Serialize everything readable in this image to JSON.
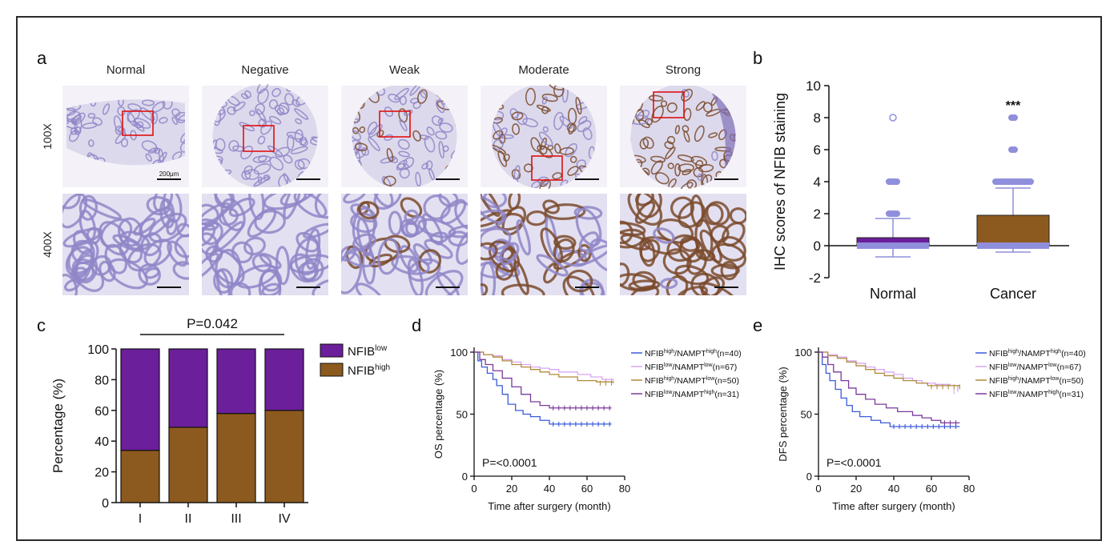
{
  "panels": {
    "a": {
      "letter": "a",
      "columns": [
        "Normal",
        "Negative",
        "Weak",
        "Moderate",
        "Strong"
      ],
      "rows": [
        "100X",
        "400X"
      ],
      "scale_bar_label": "200μm"
    },
    "b": {
      "letter": "b",
      "significance": "***"
    },
    "c": {
      "letter": "c",
      "p_value": "P=0.042"
    },
    "d": {
      "letter": "d",
      "p_value": "P=<0.0001"
    },
    "e": {
      "letter": "e",
      "p_value": "P=<0.0001"
    }
  },
  "colors": {
    "purple": "#6b1f9b",
    "brown": "#8c5a1e",
    "box_fill": "#8c5a1e",
    "outlier_blue": "#8f8fdc",
    "km_blue": "#3b5bdb",
    "km_pink": "#d7a6f0",
    "km_olive": "#b08a3a",
    "km_violet": "#7a3a9a",
    "he_stain": "#8f86c8",
    "dab_stain": "#7a4a2c"
  },
  "chart_data": [
    {
      "id": "b",
      "type": "box",
      "title": "",
      "xlabel": "",
      "ylabel": "IHC scores of NFIB staining",
      "ylim": [
        -2,
        10
      ],
      "yticks": [
        -2,
        0,
        2,
        4,
        6,
        8,
        10
      ],
      "categories": [
        "Normal",
        "Cancer"
      ],
      "boxes": [
        {
          "name": "Normal",
          "min": -0.7,
          "q1": 0,
          "median": 0,
          "q3": 0.5,
          "max": 1.7,
          "outliers": [
            2,
            4,
            8
          ]
        },
        {
          "name": "Cancer",
          "min": -0.4,
          "q1": 0,
          "median": 0,
          "q3": 1.9,
          "max": 3.6,
          "outliers": [
            4,
            6,
            8
          ]
        }
      ]
    },
    {
      "id": "c",
      "type": "bar",
      "stacked": true,
      "title": "",
      "xlabel": "",
      "ylabel": "Percentage (%)",
      "ylim": [
        0,
        100
      ],
      "yticks": [
        0,
        20,
        40,
        60,
        80,
        100
      ],
      "categories": [
        "I",
        "II",
        "III",
        "IV"
      ],
      "series": [
        {
          "name": "NFIB",
          "sup": "high",
          "color": "#8c5a1e",
          "values": [
            34,
            49,
            58,
            60
          ]
        },
        {
          "name": "NFIB",
          "sup": "low",
          "color": "#6b1f9b",
          "values": [
            66,
            51,
            42,
            40
          ]
        }
      ],
      "legend_order": [
        1,
        0
      ]
    },
    {
      "id": "d",
      "type": "line",
      "title": "",
      "xlabel": "Time after surgery (month)",
      "ylabel": "OS percentage (%)",
      "xlim": [
        0,
        80
      ],
      "ylim": [
        0,
        100
      ],
      "xticks": [
        0,
        20,
        40,
        60,
        80
      ],
      "yticks": [
        0,
        50,
        100
      ],
      "series": [
        {
          "name": "NFIB",
          "sup1": "high",
          "mid": "/NAMPT",
          "sup2": "high",
          "suffix": "(n=40)",
          "color": "#3b5bdb",
          "points": [
            [
              0,
              100
            ],
            [
              2,
              93
            ],
            [
              4,
              88
            ],
            [
              7,
              83
            ],
            [
              10,
              78
            ],
            [
              12,
              73
            ],
            [
              15,
              66
            ],
            [
              18,
              58
            ],
            [
              22,
              53
            ],
            [
              26,
              50
            ],
            [
              30,
              48
            ],
            [
              35,
              45
            ],
            [
              40,
              42
            ],
            [
              73,
              42
            ]
          ]
        },
        {
          "name": "NFIB",
          "sup1": "low",
          "mid": "/NAMPT",
          "sup2": "low",
          "suffix": "(n=67)",
          "color": "#d7a6f0",
          "points": [
            [
              0,
              100
            ],
            [
              5,
              98
            ],
            [
              10,
              97
            ],
            [
              15,
              94
            ],
            [
              20,
              92
            ],
            [
              25,
              90
            ],
            [
              30,
              88
            ],
            [
              35,
              87
            ],
            [
              40,
              86
            ],
            [
              45,
              84
            ],
            [
              55,
              82
            ],
            [
              62,
              80
            ],
            [
              68,
              78
            ],
            [
              74,
              77
            ]
          ]
        },
        {
          "name": "NFIB",
          "sup1": "high",
          "mid": "/NAMPT",
          "sup2": "low",
          "suffix": "(n=50)",
          "color": "#b08a3a",
          "points": [
            [
              0,
              100
            ],
            [
              5,
              98
            ],
            [
              10,
              96
            ],
            [
              15,
              93
            ],
            [
              20,
              90
            ],
            [
              25,
              88
            ],
            [
              30,
              86
            ],
            [
              35,
              84
            ],
            [
              40,
              82
            ],
            [
              45,
              80
            ],
            [
              55,
              77
            ],
            [
              65,
              76
            ],
            [
              74,
              75
            ]
          ]
        },
        {
          "name": "NFIB",
          "sup1": "low",
          "mid": "/NAMPT",
          "sup2": "high",
          "suffix": "(n=31)",
          "color": "#7a3a9a",
          "points": [
            [
              0,
              100
            ],
            [
              3,
              94
            ],
            [
              6,
              90
            ],
            [
              10,
              85
            ],
            [
              15,
              79
            ],
            [
              20,
              72
            ],
            [
              25,
              66
            ],
            [
              30,
              60
            ],
            [
              35,
              57
            ],
            [
              40,
              55
            ],
            [
              73,
              55
            ]
          ]
        }
      ]
    },
    {
      "id": "e",
      "type": "line",
      "title": "",
      "xlabel": "Time after surgery (month)",
      "ylabel": "DFS percentage (%)",
      "xlim": [
        0,
        80
      ],
      "ylim": [
        0,
        100
      ],
      "xticks": [
        0,
        20,
        40,
        60,
        80
      ],
      "yticks": [
        0,
        50,
        100
      ],
      "series": [
        {
          "name": "NFIB",
          "sup1": "high",
          "mid": "/NAMPT",
          "sup2": "high",
          "suffix": "(n=40)",
          "color": "#3b5bdb",
          "points": [
            [
              0,
              100
            ],
            [
              2,
              90
            ],
            [
              4,
              83
            ],
            [
              6,
              77
            ],
            [
              9,
              70
            ],
            [
              12,
              63
            ],
            [
              15,
              57
            ],
            [
              18,
              52
            ],
            [
              22,
              48
            ],
            [
              28,
              45
            ],
            [
              33,
              43
            ],
            [
              38,
              40
            ],
            [
              75,
              40
            ]
          ]
        },
        {
          "name": "NFIB",
          "sup1": "low",
          "mid": "/NAMPT",
          "sup2": "low",
          "suffix": "(n=67)",
          "color": "#d7a6f0",
          "points": [
            [
              0,
              100
            ],
            [
              5,
              98
            ],
            [
              10,
              96
            ],
            [
              15,
              93
            ],
            [
              20,
              91
            ],
            [
              25,
              88
            ],
            [
              30,
              86
            ],
            [
              35,
              84
            ],
            [
              40,
              82
            ],
            [
              45,
              79
            ],
            [
              50,
              77
            ],
            [
              55,
              75
            ],
            [
              62,
              74
            ],
            [
              70,
              73
            ],
            [
              74,
              68
            ]
          ]
        },
        {
          "name": "NFIB",
          "sup1": "high",
          "mid": "/NAMPT",
          "sup2": "low",
          "suffix": "(n=50)",
          "color": "#b08a3a",
          "points": [
            [
              0,
              100
            ],
            [
              5,
              97
            ],
            [
              10,
              95
            ],
            [
              15,
              92
            ],
            [
              20,
              89
            ],
            [
              25,
              86
            ],
            [
              30,
              83
            ],
            [
              35,
              81
            ],
            [
              40,
              79
            ],
            [
              45,
              77
            ],
            [
              52,
              75
            ],
            [
              58,
              73
            ],
            [
              75,
              72
            ]
          ]
        },
        {
          "name": "NFIB",
          "sup1": "low",
          "mid": "/NAMPT",
          "sup2": "high",
          "suffix": "(n=31)",
          "color": "#7a3a9a",
          "points": [
            [
              0,
              100
            ],
            [
              2,
              96
            ],
            [
              5,
              90
            ],
            [
              8,
              84
            ],
            [
              12,
              77
            ],
            [
              16,
              71
            ],
            [
              20,
              66
            ],
            [
              25,
              62
            ],
            [
              30,
              58
            ],
            [
              36,
              55
            ],
            [
              42,
              52
            ],
            [
              50,
              49
            ],
            [
              55,
              47
            ],
            [
              60,
              45
            ],
            [
              65,
              43
            ],
            [
              75,
              43
            ]
          ]
        }
      ]
    }
  ]
}
